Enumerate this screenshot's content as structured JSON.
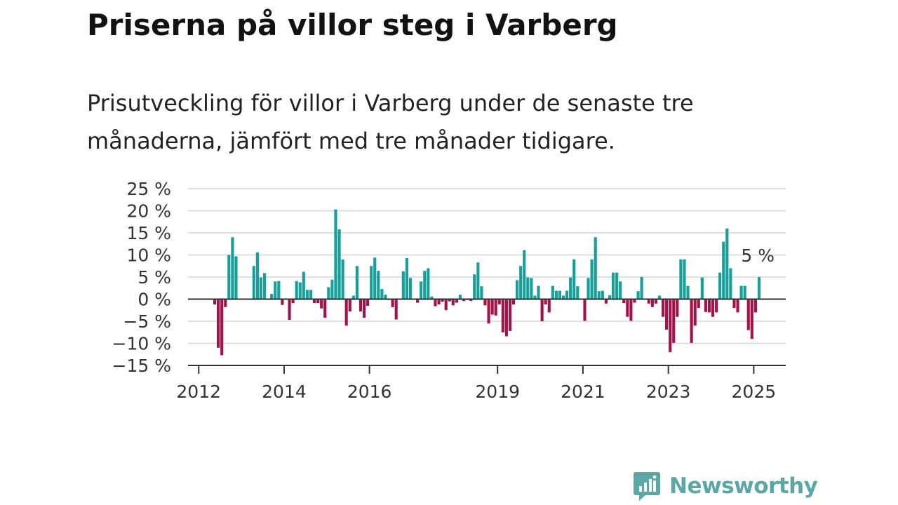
{
  "title": "Priserna på villor steg i Varberg",
  "subtitle": "Prisutveckling för villor i Varberg under de senaste tre månaderna, jämfört med tre månader tidigare.",
  "brand": {
    "name": "Newsworthy"
  },
  "chart_data": {
    "type": "bar",
    "title": "",
    "xlabel": "",
    "ylabel": "",
    "ylim": [
      -15,
      25
    ],
    "yticks": [
      25,
      20,
      15,
      10,
      5,
      0,
      -5,
      -10,
      -15
    ],
    "ytick_labels": [
      "25 %",
      "20 %",
      "15 %",
      "10 %",
      "5 %",
      "0 %",
      "−5 %",
      "−10 %",
      "−15 %"
    ],
    "xlim": [
      2011.75,
      2025.75
    ],
    "xticks": [
      2012,
      2014,
      2016,
      2019,
      2021,
      2023,
      2025
    ],
    "xtick_labels": [
      "2012",
      "2014",
      "2016",
      "2019",
      "2021",
      "2023",
      "2025"
    ],
    "grid": true,
    "positive_color": "#16a09a",
    "negative_color": "#a5124a",
    "annotation": {
      "text": "5 %",
      "x": 2025.04,
      "y": 5
    },
    "values": [
      {
        "x": 2012.375,
        "y": -1.2
      },
      {
        "x": 2012.458,
        "y": -11.0
      },
      {
        "x": 2012.542,
        "y": -12.7
      },
      {
        "x": 2012.625,
        "y": -1.8
      },
      {
        "x": 2012.708,
        "y": 10.0
      },
      {
        "x": 2012.792,
        "y": 14.0
      },
      {
        "x": 2012.875,
        "y": 9.7
      },
      {
        "x": 2013.292,
        "y": 7.5
      },
      {
        "x": 2013.375,
        "y": 10.6
      },
      {
        "x": 2013.458,
        "y": 4.9
      },
      {
        "x": 2013.542,
        "y": 5.9
      },
      {
        "x": 2013.708,
        "y": 1.2
      },
      {
        "x": 2013.792,
        "y": 4.0
      },
      {
        "x": 2013.875,
        "y": 4.1
      },
      {
        "x": 2013.958,
        "y": -1.3
      },
      {
        "x": 2014.042,
        "y": -0.1
      },
      {
        "x": 2014.125,
        "y": -4.7
      },
      {
        "x": 2014.208,
        "y": -0.9
      },
      {
        "x": 2014.292,
        "y": 4.1
      },
      {
        "x": 2014.375,
        "y": 3.8
      },
      {
        "x": 2014.458,
        "y": 6.2
      },
      {
        "x": 2014.542,
        "y": 2.1
      },
      {
        "x": 2014.625,
        "y": 2.1
      },
      {
        "x": 2014.708,
        "y": -0.9
      },
      {
        "x": 2014.792,
        "y": -0.9
      },
      {
        "x": 2014.875,
        "y": -2.1
      },
      {
        "x": 2014.958,
        "y": -4.2
      },
      {
        "x": 2015.042,
        "y": 2.7
      },
      {
        "x": 2015.125,
        "y": 4.4
      },
      {
        "x": 2015.208,
        "y": 20.3
      },
      {
        "x": 2015.292,
        "y": 15.8
      },
      {
        "x": 2015.375,
        "y": 9.0
      },
      {
        "x": 2015.458,
        "y": -6.0
      },
      {
        "x": 2015.542,
        "y": -2.8
      },
      {
        "x": 2015.625,
        "y": 0.8
      },
      {
        "x": 2015.708,
        "y": 7.5
      },
      {
        "x": 2015.792,
        "y": -2.8
      },
      {
        "x": 2015.875,
        "y": -4.2
      },
      {
        "x": 2015.958,
        "y": -1.5
      },
      {
        "x": 2016.042,
        "y": 7.5
      },
      {
        "x": 2016.125,
        "y": 9.4
      },
      {
        "x": 2016.208,
        "y": 6.4
      },
      {
        "x": 2016.292,
        "y": 2.3
      },
      {
        "x": 2016.375,
        "y": 1.0
      },
      {
        "x": 2016.458,
        "y": -0.2
      },
      {
        "x": 2016.542,
        "y": -1.8
      },
      {
        "x": 2016.625,
        "y": -4.6
      },
      {
        "x": 2016.792,
        "y": 6.3
      },
      {
        "x": 2016.875,
        "y": 9.3
      },
      {
        "x": 2016.958,
        "y": 4.8
      },
      {
        "x": 2017.125,
        "y": -0.8
      },
      {
        "x": 2017.208,
        "y": 4.0
      },
      {
        "x": 2017.292,
        "y": 6.4
      },
      {
        "x": 2017.375,
        "y": 7.0
      },
      {
        "x": 2017.458,
        "y": 0.6
      },
      {
        "x": 2017.542,
        "y": -1.6
      },
      {
        "x": 2017.625,
        "y": -1.2
      },
      {
        "x": 2017.708,
        "y": -0.6
      },
      {
        "x": 2017.792,
        "y": -2.5
      },
      {
        "x": 2017.875,
        "y": -0.5
      },
      {
        "x": 2017.958,
        "y": -1.4
      },
      {
        "x": 2018.042,
        "y": -0.8
      },
      {
        "x": 2018.125,
        "y": 1.0
      },
      {
        "x": 2018.208,
        "y": -0.4
      },
      {
        "x": 2018.292,
        "y": -0.2
      },
      {
        "x": 2018.375,
        "y": -0.4
      },
      {
        "x": 2018.458,
        "y": 5.6
      },
      {
        "x": 2018.542,
        "y": 8.3
      },
      {
        "x": 2018.625,
        "y": 2.9
      },
      {
        "x": 2018.708,
        "y": -1.4
      },
      {
        "x": 2018.792,
        "y": -5.5
      },
      {
        "x": 2018.875,
        "y": -3.5
      },
      {
        "x": 2018.958,
        "y": -3.7
      },
      {
        "x": 2019.042,
        "y": -1.2
      },
      {
        "x": 2019.125,
        "y": -7.5
      },
      {
        "x": 2019.208,
        "y": -8.4
      },
      {
        "x": 2019.292,
        "y": -7.2
      },
      {
        "x": 2019.375,
        "y": -1.2
      },
      {
        "x": 2019.458,
        "y": 4.3
      },
      {
        "x": 2019.542,
        "y": 7.5
      },
      {
        "x": 2019.625,
        "y": 11.1
      },
      {
        "x": 2019.708,
        "y": 4.9
      },
      {
        "x": 2019.792,
        "y": 4.8
      },
      {
        "x": 2019.875,
        "y": 0.8
      },
      {
        "x": 2019.958,
        "y": 3.0
      },
      {
        "x": 2020.042,
        "y": -5.0
      },
      {
        "x": 2020.125,
        "y": -1.2
      },
      {
        "x": 2020.208,
        "y": -3.0
      },
      {
        "x": 2020.292,
        "y": 3.0
      },
      {
        "x": 2020.375,
        "y": 1.9
      },
      {
        "x": 2020.458,
        "y": 1.9
      },
      {
        "x": 2020.542,
        "y": 0.8
      },
      {
        "x": 2020.625,
        "y": 1.9
      },
      {
        "x": 2020.708,
        "y": 4.9
      },
      {
        "x": 2020.792,
        "y": 9.0
      },
      {
        "x": 2020.875,
        "y": 2.9
      },
      {
        "x": 2021.042,
        "y": -4.9
      },
      {
        "x": 2021.125,
        "y": 4.8
      },
      {
        "x": 2021.208,
        "y": 9.0
      },
      {
        "x": 2021.292,
        "y": 14.0
      },
      {
        "x": 2021.375,
        "y": 1.8
      },
      {
        "x": 2021.458,
        "y": 1.9
      },
      {
        "x": 2021.542,
        "y": -1.0
      },
      {
        "x": 2021.625,
        "y": 0.9
      },
      {
        "x": 2021.708,
        "y": 6.0
      },
      {
        "x": 2021.792,
        "y": 6.0
      },
      {
        "x": 2021.875,
        "y": 4.0
      },
      {
        "x": 2021.958,
        "y": -0.9
      },
      {
        "x": 2022.042,
        "y": -4.0
      },
      {
        "x": 2022.125,
        "y": -4.9
      },
      {
        "x": 2022.208,
        "y": -0.8
      },
      {
        "x": 2022.292,
        "y": 1.8
      },
      {
        "x": 2022.375,
        "y": 5.0
      },
      {
        "x": 2022.542,
        "y": -1.0
      },
      {
        "x": 2022.625,
        "y": -1.8
      },
      {
        "x": 2022.708,
        "y": -1.0
      },
      {
        "x": 2022.792,
        "y": 0.8
      },
      {
        "x": 2022.875,
        "y": -4.0
      },
      {
        "x": 2022.958,
        "y": -6.9
      },
      {
        "x": 2023.042,
        "y": -12.0
      },
      {
        "x": 2023.125,
        "y": -9.9
      },
      {
        "x": 2023.208,
        "y": -4.0
      },
      {
        "x": 2023.292,
        "y": 9.0
      },
      {
        "x": 2023.375,
        "y": 9.0
      },
      {
        "x": 2023.458,
        "y": 3.0
      },
      {
        "x": 2023.542,
        "y": -9.9
      },
      {
        "x": 2023.625,
        "y": -6.0
      },
      {
        "x": 2023.708,
        "y": -2.0
      },
      {
        "x": 2023.792,
        "y": 4.9
      },
      {
        "x": 2023.875,
        "y": -2.9
      },
      {
        "x": 2023.958,
        "y": -3.0
      },
      {
        "x": 2024.042,
        "y": -4.0
      },
      {
        "x": 2024.125,
        "y": -3.0
      },
      {
        "x": 2024.208,
        "y": 6.0
      },
      {
        "x": 2024.292,
        "y": 13.0
      },
      {
        "x": 2024.375,
        "y": 16.0
      },
      {
        "x": 2024.458,
        "y": 7.0
      },
      {
        "x": 2024.542,
        "y": -2.0
      },
      {
        "x": 2024.625,
        "y": -3.0
      },
      {
        "x": 2024.708,
        "y": 3.0
      },
      {
        "x": 2024.792,
        "y": 3.0
      },
      {
        "x": 2024.875,
        "y": -7.0
      },
      {
        "x": 2024.958,
        "y": -9.0
      },
      {
        "x": 2025.042,
        "y": -3.0
      },
      {
        "x": 2025.125,
        "y": 5.0
      }
    ]
  }
}
